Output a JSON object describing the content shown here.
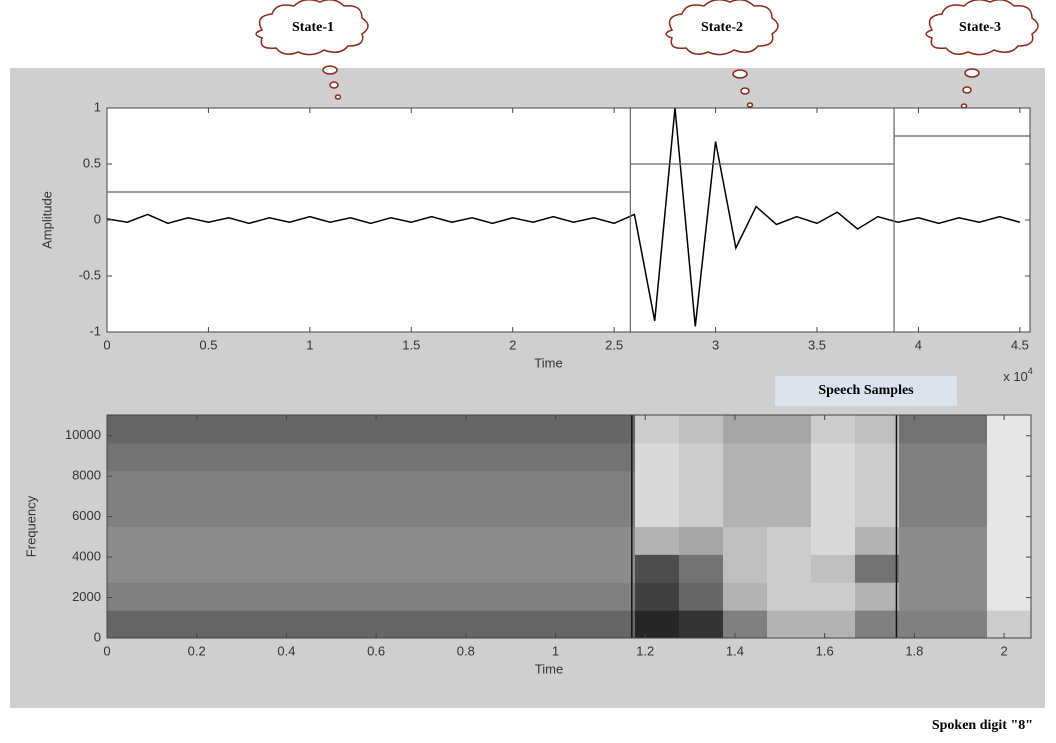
{
  "states": [
    "State-1",
    "State-2",
    "State-3"
  ],
  "caption": "Spoken digit \"8\"",
  "chart_data": [
    {
      "type": "line",
      "xlabel": "Time",
      "ylabel": "Amplitude",
      "x_scale_label": "x 10",
      "x_scale_exponent": "4",
      "annotation": "Speech Samples",
      "xlim": [
        0,
        4.55
      ],
      "ylim": [
        -1,
        1
      ],
      "xticks": [
        0,
        0.5,
        1,
        1.5,
        2,
        2.5,
        3,
        3.5,
        4,
        4.5
      ],
      "yticks": [
        -1,
        -0.5,
        0,
        0.5,
        1
      ],
      "state_boundaries": [
        2.58,
        3.88
      ],
      "state_levels": [
        0.25,
        0.5,
        0.75
      ],
      "x": [
        0,
        0.1,
        0.2,
        0.3,
        0.4,
        0.5,
        0.6,
        0.7,
        0.8,
        0.9,
        1.0,
        1.1,
        1.2,
        1.3,
        1.4,
        1.5,
        1.6,
        1.7,
        1.8,
        1.9,
        2.0,
        2.1,
        2.2,
        2.3,
        2.4,
        2.5,
        2.6,
        2.7,
        2.8,
        2.9,
        3.0,
        3.1,
        3.2,
        3.3,
        3.4,
        3.5,
        3.6,
        3.7,
        3.8,
        3.9,
        4.0,
        4.1,
        4.2,
        4.3,
        4.4,
        4.5
      ],
      "values": [
        0.01,
        -0.02,
        0.05,
        -0.03,
        0.02,
        -0.02,
        0.02,
        -0.03,
        0.02,
        -0.02,
        0.03,
        -0.02,
        0.02,
        -0.03,
        0.02,
        -0.02,
        0.03,
        -0.02,
        0.02,
        -0.03,
        0.02,
        -0.02,
        0.03,
        -0.02,
        0.02,
        -0.03,
        0.05,
        -0.9,
        1,
        -0.95,
        0.7,
        -0.25,
        0.12,
        -0.04,
        0.03,
        -0.03,
        0.07,
        -0.08,
        0.03,
        -0.02,
        0.02,
        -0.03,
        0.02,
        -0.02,
        0.03,
        -0.02
      ],
      "color": "#000000"
    },
    {
      "type": "heatmap",
      "xlabel": "Time",
      "ylabel": "Frequency",
      "xlim": [
        0,
        2.06
      ],
      "ylim": [
        0,
        11025
      ],
      "xticks": [
        0,
        0.2,
        0.4,
        0.6,
        0.8,
        1,
        1.2,
        1.4,
        1.6,
        1.8,
        2
      ],
      "yticks": [
        0,
        2000,
        4000,
        6000,
        8000,
        10000
      ],
      "state_boundaries": [
        1.17,
        1.76
      ],
      "z": [
        [
          0.6,
          0.6,
          0.6,
          0.6,
          0.6,
          0.6,
          0.6,
          0.6,
          0.6,
          0.6,
          0.6,
          0.6,
          0.85,
          0.8,
          0.5,
          0.3,
          0.3,
          0.5,
          0.5,
          0.5,
          0.2
        ],
        [
          0.5,
          0.5,
          0.5,
          0.5,
          0.5,
          0.5,
          0.5,
          0.5,
          0.5,
          0.5,
          0.5,
          0.5,
          0.75,
          0.6,
          0.3,
          0.2,
          0.2,
          0.3,
          0.45,
          0.45,
          0.1
        ],
        [
          0.45,
          0.45,
          0.45,
          0.45,
          0.45,
          0.45,
          0.45,
          0.45,
          0.45,
          0.45,
          0.45,
          0.45,
          0.7,
          0.55,
          0.25,
          0.2,
          0.25,
          0.55,
          0.45,
          0.45,
          0.1
        ],
        [
          0.45,
          0.45,
          0.45,
          0.45,
          0.45,
          0.45,
          0.45,
          0.45,
          0.45,
          0.45,
          0.45,
          0.45,
          0.3,
          0.35,
          0.25,
          0.2,
          0.15,
          0.3,
          0.45,
          0.45,
          0.1
        ],
        [
          0.5,
          0.5,
          0.5,
          0.5,
          0.5,
          0.5,
          0.5,
          0.5,
          0.5,
          0.5,
          0.5,
          0.5,
          0.15,
          0.2,
          0.3,
          0.3,
          0.15,
          0.2,
          0.5,
          0.5,
          0.1
        ],
        [
          0.5,
          0.5,
          0.5,
          0.5,
          0.5,
          0.5,
          0.5,
          0.5,
          0.5,
          0.5,
          0.5,
          0.5,
          0.15,
          0.2,
          0.3,
          0.3,
          0.15,
          0.2,
          0.5,
          0.5,
          0.1
        ],
        [
          0.55,
          0.55,
          0.55,
          0.55,
          0.55,
          0.55,
          0.55,
          0.55,
          0.55,
          0.55,
          0.55,
          0.55,
          0.15,
          0.2,
          0.3,
          0.3,
          0.15,
          0.2,
          0.5,
          0.5,
          0.1
        ],
        [
          0.6,
          0.6,
          0.6,
          0.6,
          0.6,
          0.6,
          0.6,
          0.6,
          0.6,
          0.6,
          0.6,
          0.6,
          0.2,
          0.25,
          0.35,
          0.35,
          0.2,
          0.25,
          0.55,
          0.55,
          0.1
        ]
      ]
    }
  ]
}
